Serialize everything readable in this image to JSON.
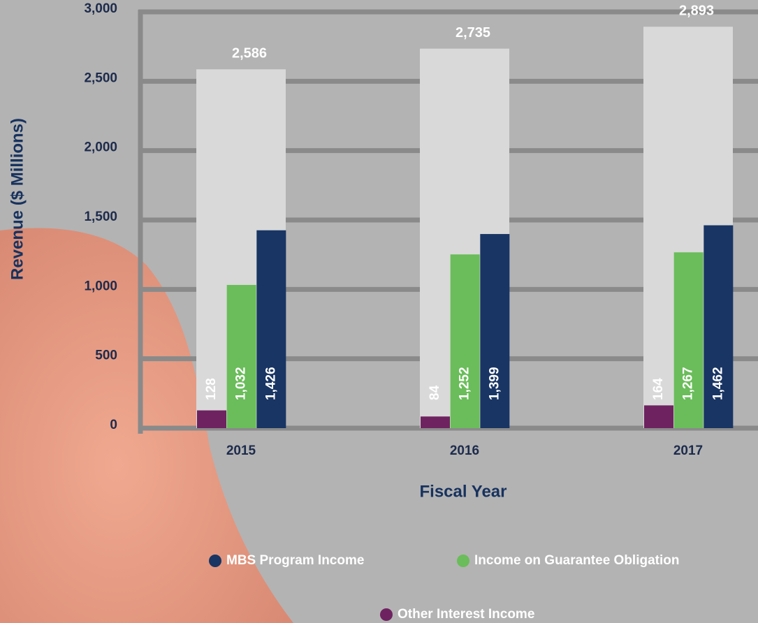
{
  "chart_data": {
    "type": "bar",
    "y_label": "Revenue ($ Millions)",
    "x_label": "Fiscal Year",
    "categories": [
      "2015",
      "2016",
      "2017"
    ],
    "totals": [
      2586,
      2735,
      2893
    ],
    "total_labels": [
      "2,586",
      "2,735",
      "2,893"
    ],
    "total_color": "#d9d9d9",
    "series": [
      {
        "name": "Other Interest Income",
        "color": "#6e2360",
        "values": [
          128,
          84,
          164
        ]
      },
      {
        "name": "Income on Guarantee Obligation",
        "color": "#6abd5a",
        "values": [
          1032,
          1252,
          1267
        ],
        "value_labels": [
          "1,032",
          "1,252",
          "1,267"
        ]
      },
      {
        "name": "MBS Program Income",
        "color": "#183564",
        "values": [
          1426,
          1399,
          1462
        ],
        "value_labels": [
          "1,426",
          "1,399",
          "1,462"
        ]
      }
    ],
    "ylim": [
      0,
      3000
    ],
    "yticks": [
      0,
      500,
      {
        "value": 1000,
        "label": "1,000"
      },
      {
        "value": 1500,
        "label": "1,500"
      },
      {
        "value": 2000,
        "label": "2,000"
      },
      {
        "value": 2500,
        "label": "2,500"
      },
      {
        "value": 3000,
        "label": "3,000"
      }
    ],
    "grid": true
  }
}
